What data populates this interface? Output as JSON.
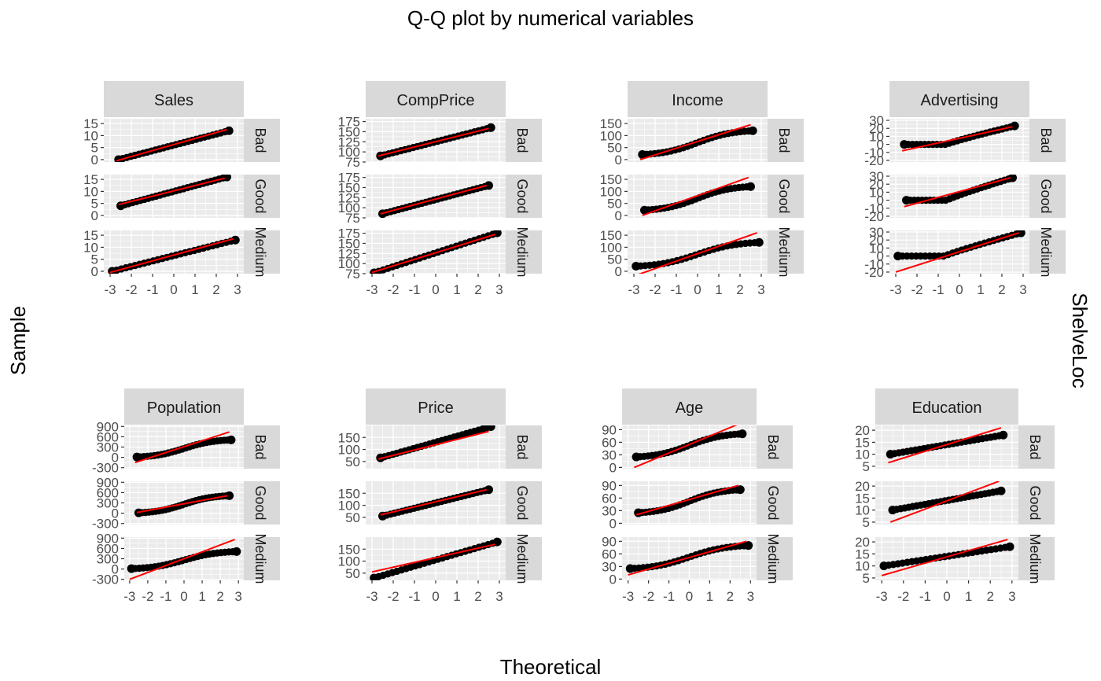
{
  "title": "Q-Q plot by numerical variables",
  "xlabel": "Theoretical",
  "ylabel": "Sample",
  "facet_label": "ShelveLoc",
  "row_strips": [
    "Bad",
    "Good",
    "Medium"
  ],
  "x_ticks": [
    -3,
    -2,
    -1,
    0,
    1,
    2,
    3
  ],
  "xlim": [
    -3,
    3
  ],
  "grid": true,
  "colors": {
    "panel_bg": "#ebebeb",
    "grid": "#ffffff",
    "strip_bg": "#d9d9d9",
    "points": "#000000",
    "line": "#ff0000",
    "tick_text": "#4d4d4d"
  },
  "chart_data": [
    {
      "type": "scatter",
      "name": "Sales",
      "yticks": [
        0,
        5,
        10,
        15
      ],
      "ylim": [
        -1,
        17
      ],
      "groups": [
        {
          "strip": "Bad",
          "xrange": [
            -2.6,
            2.6
          ],
          "ymin": 0,
          "ymax": 12,
          "line": [
            -0.5,
            12.5
          ],
          "shape": "linear"
        },
        {
          "strip": "Good",
          "xrange": [
            -2.5,
            2.5
          ],
          "ymin": 4,
          "ymax": 16,
          "line": [
            4.5,
            15.5
          ],
          "shape": "linear"
        },
        {
          "strip": "Medium",
          "xrange": [
            -2.9,
            2.9
          ],
          "ymin": 0,
          "ymax": 13,
          "line": [
            -0.5,
            13.5
          ],
          "shape": "linear"
        }
      ]
    },
    {
      "type": "scatter",
      "name": "CompPrice",
      "yticks": [
        75,
        100,
        125,
        150,
        175
      ],
      "ylim": [
        75,
        182
      ],
      "groups": [
        {
          "strip": "Bad",
          "xrange": [
            -2.6,
            2.6
          ],
          "ymin": 90,
          "ymax": 160,
          "line": [
            90,
            158
          ],
          "shape": "linear"
        },
        {
          "strip": "Good",
          "xrange": [
            -2.5,
            2.5
          ],
          "ymin": 85,
          "ymax": 155,
          "line": [
            85,
            155
          ],
          "shape": "linear"
        },
        {
          "strip": "Medium",
          "xrange": [
            -2.9,
            2.9
          ],
          "ymin": 77,
          "ymax": 176,
          "line": [
            78,
            172
          ],
          "shape": "linear"
        }
      ]
    },
    {
      "type": "scatter",
      "name": "Income",
      "yticks": [
        0,
        50,
        100,
        150
      ],
      "ylim": [
        -10,
        170
      ],
      "groups": [
        {
          "strip": "Bad",
          "xrange": [
            -2.6,
            2.6
          ],
          "ymin": 21,
          "ymax": 120,
          "line": [
            0,
            145
          ],
          "shape": "s"
        },
        {
          "strip": "Good",
          "xrange": [
            -2.5,
            2.5
          ],
          "ymin": 22,
          "ymax": 120,
          "line": [
            0,
            158
          ],
          "shape": "s"
        },
        {
          "strip": "Medium",
          "xrange": [
            -2.9,
            2.9
          ],
          "ymin": 21,
          "ymax": 120,
          "line": [
            -20,
            160
          ],
          "shape": "s"
        }
      ]
    },
    {
      "type": "scatter",
      "name": "Advertising",
      "yticks": [
        -20,
        -10,
        0,
        10,
        20,
        30
      ],
      "ylim": [
        -22,
        32
      ],
      "groups": [
        {
          "strip": "Bad",
          "xrange": [
            -2.6,
            2.6
          ],
          "ymin": 0,
          "ymax": 23,
          "line": [
            -8,
            22
          ],
          "shape": "floor"
        },
        {
          "strip": "Good",
          "xrange": [
            -2.5,
            2.5
          ],
          "ymin": 0,
          "ymax": 28,
          "line": [
            -8,
            28
          ],
          "shape": "floor"
        },
        {
          "strip": "Medium",
          "xrange": [
            -2.9,
            2.9
          ],
          "ymin": 0,
          "ymax": 29,
          "line": [
            -20,
            29
          ],
          "shape": "floor"
        }
      ]
    },
    {
      "type": "scatter",
      "name": "Population",
      "yticks": [
        -300,
        0,
        300,
        600,
        900
      ],
      "ylim": [
        -330,
        930
      ],
      "groups": [
        {
          "strip": "Bad",
          "xrange": [
            -2.6,
            2.6
          ],
          "ymin": 10,
          "ymax": 509,
          "line": [
            -150,
            740
          ],
          "shape": "s"
        },
        {
          "strip": "Good",
          "xrange": [
            -2.5,
            2.5
          ],
          "ymin": 10,
          "ymax": 509,
          "line": [
            20,
            510
          ],
          "shape": "s"
        },
        {
          "strip": "Medium",
          "xrange": [
            -2.9,
            2.9
          ],
          "ymin": 10,
          "ymax": 509,
          "line": [
            -300,
            860
          ],
          "shape": "s"
        }
      ]
    },
    {
      "type": "scatter",
      "name": "Price",
      "yticks": [
        50,
        100,
        150
      ],
      "ylim": [
        20,
        200
      ],
      "groups": [
        {
          "strip": "Bad",
          "xrange": [
            -2.6,
            2.6
          ],
          "ymin": 65,
          "ymax": 195,
          "line": [
            60,
            175
          ],
          "shape": "linear"
        },
        {
          "strip": "Good",
          "xrange": [
            -2.5,
            2.5
          ],
          "ymin": 55,
          "ymax": 165,
          "line": [
            60,
            165
          ],
          "shape": "linear"
        },
        {
          "strip": "Medium",
          "xrange": [
            -2.9,
            2.9
          ],
          "ymin": 30,
          "ymax": 180,
          "line": [
            55,
            170
          ],
          "shape": "linear"
        }
      ]
    },
    {
      "type": "scatter",
      "name": "Age",
      "yticks": [
        0,
        30,
        60,
        90
      ],
      "ylim": [
        -3,
        100
      ],
      "groups": [
        {
          "strip": "Bad",
          "xrange": [
            -2.6,
            2.6
          ],
          "ymin": 25,
          "ymax": 80,
          "line": [
            0,
            105
          ],
          "shape": "s"
        },
        {
          "strip": "Good",
          "xrange": [
            -2.5,
            2.5
          ],
          "ymin": 25,
          "ymax": 80,
          "line": [
            20,
            90
          ],
          "shape": "s"
        },
        {
          "strip": "Medium",
          "xrange": [
            -2.9,
            2.9
          ],
          "ymin": 25,
          "ymax": 80,
          "line": [
            10,
            90
          ],
          "shape": "s"
        }
      ]
    },
    {
      "type": "scatter",
      "name": "Education",
      "yticks": [
        5,
        10,
        15,
        20
      ],
      "ylim": [
        4,
        22
      ],
      "groups": [
        {
          "strip": "Bad",
          "xrange": [
            -2.6,
            2.6
          ],
          "ymin": 10,
          "ymax": 18,
          "line": [
            6.5,
            21
          ],
          "shape": "linear"
        },
        {
          "strip": "Good",
          "xrange": [
            -2.5,
            2.5
          ],
          "ymin": 10,
          "ymax": 18,
          "line": [
            5,
            22
          ],
          "shape": "linear"
        },
        {
          "strip": "Medium",
          "xrange": [
            -2.9,
            2.9
          ],
          "ymin": 10,
          "ymax": 18,
          "line": [
            6,
            21
          ],
          "shape": "linear"
        }
      ]
    }
  ]
}
